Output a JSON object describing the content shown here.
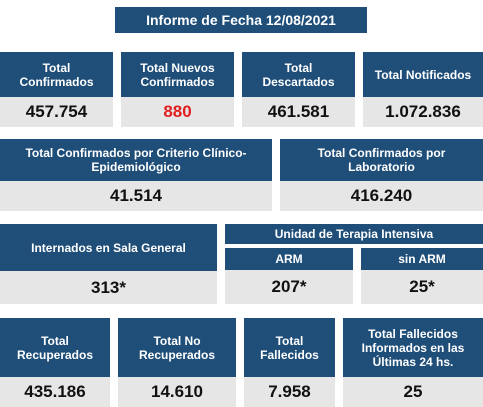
{
  "title": "Informe de Fecha 12/08/2021",
  "row1": [
    {
      "label": "Total Confirmados",
      "value": "457.754"
    },
    {
      "label": "Total Nuevos Confirmados",
      "value": "880"
    },
    {
      "label": "Total Descartados",
      "value": "461.581"
    },
    {
      "label": "Total Notificados",
      "value": "1.072.836"
    }
  ],
  "row2": [
    {
      "label": "Total Confirmados por Criterio Clínico-Epidemiológico",
      "value": "41.514"
    },
    {
      "label": "Total Confirmados por Laboratorio",
      "value": "416.240"
    }
  ],
  "row3": {
    "sala_general": {
      "label": "Internados en Sala General",
      "value": "313*"
    },
    "uti_header": "Unidad de Terapia Intensiva",
    "arm": {
      "label": "ARM",
      "value": "207*"
    },
    "sin_arm": {
      "label": "sin ARM",
      "value": "25*"
    }
  },
  "row4": [
    {
      "label": "Total Recuperados",
      "value": "435.186"
    },
    {
      "label": "Total No Recuperados",
      "value": "14.610"
    },
    {
      "label": "Total Fallecidos",
      "value": "7.958"
    },
    {
      "label": "Total Fallecidos Informados en las Últimas 24 hs.",
      "value": "25"
    }
  ],
  "colors": {
    "header": "#1f4e79",
    "value_bg": "#e6e6e6",
    "highlight": "#e02020"
  }
}
